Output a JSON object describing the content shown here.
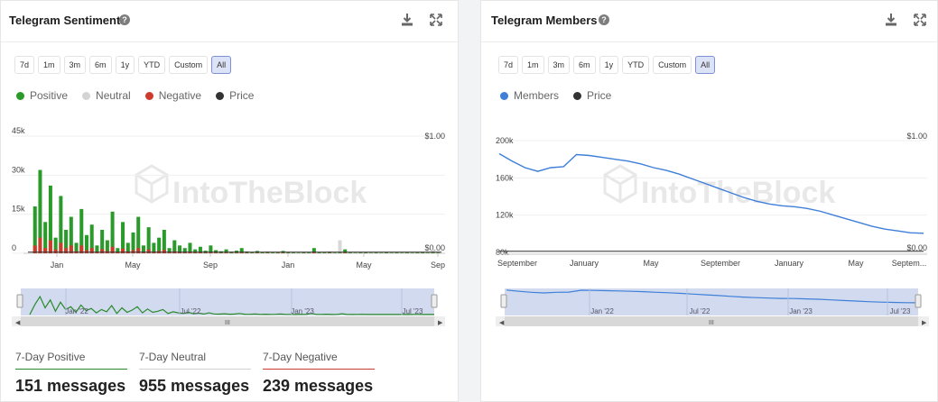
{
  "colors": {
    "positive": "#2a9a2a",
    "neutral": "#d4d4d4",
    "negative": "#cc3b2c",
    "price": "#333333",
    "members": "#3e7fd8",
    "active_range": "#dde3f7",
    "navigator": "#c9d3ec"
  },
  "icons": [
    "help-icon",
    "download-icon",
    "fullscreen-icon"
  ],
  "watermark": "IntoTheBlock",
  "range_buttons": [
    "7d",
    "1m",
    "3m",
    "6m",
    "1y",
    "YTD",
    "Custom",
    "All"
  ],
  "sentiment": {
    "title": "Telegram Sentiment",
    "active_range": "All",
    "legend": [
      "Positive",
      "Neutral",
      "Negative",
      "Price"
    ],
    "stats": [
      {
        "label": "7-Day Positive",
        "value": "151 messages",
        "color": "#2a8a2a"
      },
      {
        "label": "7-Day Neutral",
        "value": "955 messages",
        "color": "#d0d0d0"
      },
      {
        "label": "7-Day Negative",
        "value": "239 messages",
        "color": "#cc3b2c"
      }
    ]
  },
  "members": {
    "title": "Telegram Members",
    "active_range": "All",
    "legend": [
      "Members",
      "Price"
    ]
  },
  "chart_data": [
    {
      "type": "area",
      "title": "Telegram Sentiment",
      "y_ticks": [
        "45k",
        "30k",
        "15k",
        "0"
      ],
      "y2_ticks": [
        "$1.00",
        "$0.00"
      ],
      "x_ticks": [
        "Jan",
        "May",
        "Sep",
        "Jan",
        "May",
        "Sep"
      ],
      "ylim": [
        0,
        45000
      ],
      "navigator_ticks": [
        "Jan '22",
        "Jul '22",
        "Jan '23",
        "Jul '23"
      ],
      "series": [
        {
          "name": "Positive",
          "values": [
            0,
            18000,
            32000,
            12000,
            26000,
            6000,
            22000,
            9000,
            14000,
            4000,
            17000,
            7000,
            11000,
            3000,
            9000,
            5000,
            16000,
            2000,
            12000,
            4000,
            8000,
            14000,
            3000,
            10000,
            4000,
            6000,
            9000,
            2000,
            5000,
            3000,
            2000,
            4000,
            1500,
            2500,
            1000,
            3000,
            1200,
            800,
            1500,
            600,
            1000,
            2000,
            700,
            500,
            900,
            400,
            600,
            300,
            500,
            900,
            400,
            300,
            200,
            500,
            300,
            2000,
            400,
            300,
            600,
            200,
            300,
            1500,
            300,
            200,
            300,
            500,
            200,
            300,
            200,
            400,
            200,
            300,
            200,
            300,
            200,
            300,
            400,
            200,
            300,
            200
          ]
        },
        {
          "name": "Neutral",
          "values": [
            0,
            10000,
            20000,
            8000,
            15000,
            5000,
            12000,
            6000,
            9000,
            3000,
            8000,
            4000,
            6000,
            2000,
            5000,
            3000,
            7000,
            1500,
            5000,
            2000,
            4000,
            6000,
            2000,
            5000,
            2000,
            3000,
            4000,
            1000,
            2500,
            1500,
            1000,
            2000,
            800,
            1200,
            600,
            1500,
            700,
            500,
            900,
            400,
            700,
            1200,
            500,
            400,
            600,
            300,
            500,
            300,
            400,
            600,
            300,
            300,
            200,
            400,
            300,
            1500,
            300,
            300,
            500,
            300,
            5000,
            1200,
            300,
            200,
            300,
            400,
            200,
            300,
            200,
            300,
            200,
            300,
            200,
            300,
            200,
            300,
            300,
            200,
            1500,
            300
          ]
        },
        {
          "name": "Negative",
          "values": [
            0,
            3000,
            6000,
            2000,
            5000,
            1500,
            4000,
            2000,
            3000,
            800,
            3000,
            1200,
            2000,
            600,
            1600,
            900,
            2500,
            400,
            1800,
            700,
            1200,
            2000,
            500,
            1500,
            600,
            900,
            1300,
            300,
            800,
            400,
            300,
            600,
            200,
            400,
            150,
            500,
            200,
            120,
            250,
            100,
            150,
            300,
            100,
            80,
            150,
            60,
            90,
            50,
            80,
            140,
            60,
            50,
            30,
            80,
            50,
            300,
            60,
            50,
            90,
            30,
            50,
            200,
            50,
            30,
            50,
            80,
            30,
            50,
            30,
            60,
            30,
            50,
            30,
            50,
            30,
            50,
            60,
            30,
            50,
            30
          ]
        },
        {
          "name": "Price",
          "values": [
            0.01,
            0.01,
            0.01,
            0.01,
            0.01,
            0.01,
            0.01,
            0.01,
            0.01,
            0.01,
            0.01
          ]
        }
      ]
    },
    {
      "type": "line",
      "title": "Telegram Members",
      "y_ticks": [
        "200k",
        "160k",
        "120k",
        "80k"
      ],
      "y2_ticks": [
        "$1.00",
        "$0.00"
      ],
      "x_ticks": [
        "September",
        "January",
        "May",
        "September",
        "January",
        "May",
        "Septem..."
      ],
      "ylim": [
        80000,
        200000
      ],
      "navigator_ticks": [
        "Jan '22",
        "Jul '22",
        "Jan '23",
        "Jul '23"
      ],
      "series": [
        {
          "name": "Members",
          "values": [
            186000,
            178000,
            171000,
            167000,
            171000,
            172000,
            185000,
            184000,
            182000,
            180000,
            178000,
            175000,
            171000,
            168000,
            164000,
            159000,
            154000,
            149000,
            144000,
            139000,
            135000,
            132000,
            130000,
            129000,
            127000,
            124000,
            120000,
            116000,
            112000,
            108000,
            105000,
            103000,
            101000,
            100500
          ]
        },
        {
          "name": "Price",
          "values": [
            0.01,
            0.01,
            0.01,
            0.01,
            0.01
          ]
        }
      ]
    }
  ]
}
